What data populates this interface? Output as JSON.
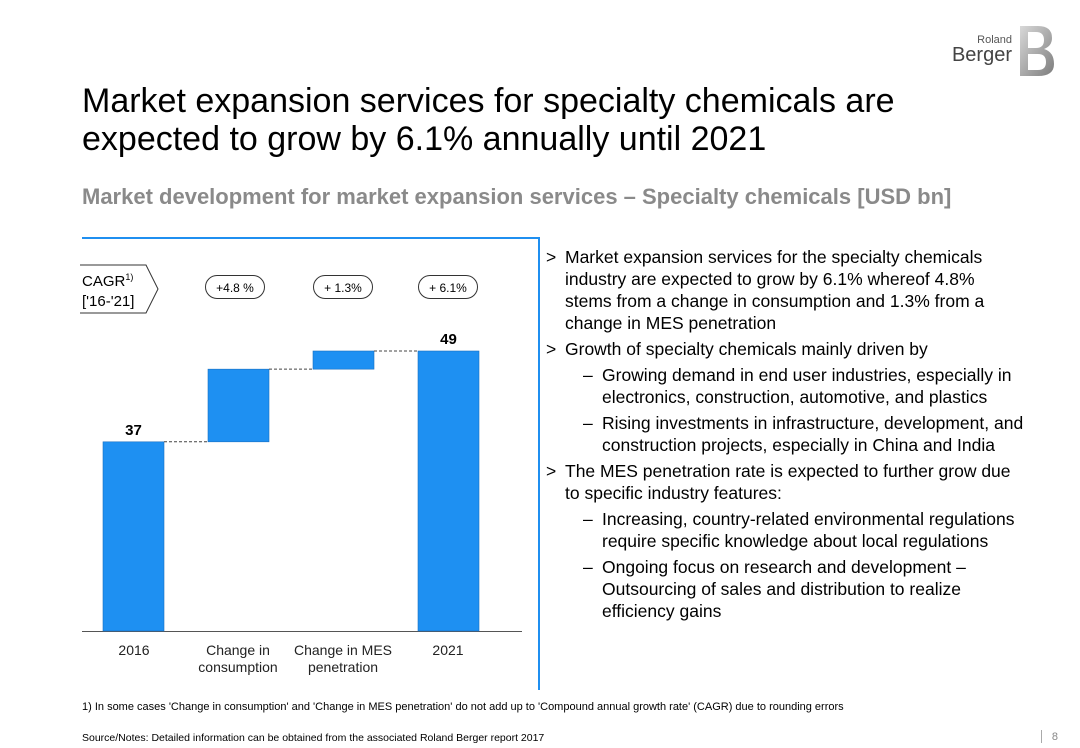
{
  "brand": {
    "line1": "Roland",
    "line2": "Berger"
  },
  "title": "Market expansion services for specialty chemicals are expected to grow by 6.1% annually until 2021",
  "subtitle": "Market development for market expansion services – Specialty chemicals [USD bn]",
  "cagr": {
    "label": "CAGR",
    "sup": "1)",
    "period": "['16-'21]",
    "values": [
      "+4.8 %",
      "+ 1.3%",
      "+ 6.1%"
    ]
  },
  "chart_data": {
    "type": "bar",
    "subtype": "waterfall",
    "title": "Market development for market expansion services – Specialty chemicals [USD bn]",
    "categories": [
      "2016",
      "Change in consumption",
      "Change in MES penetration",
      "2021"
    ],
    "category_lines": [
      [
        "2016"
      ],
      [
        "Change in",
        "consumption"
      ],
      [
        "Change in MES",
        "penetration"
      ],
      [
        "2021"
      ]
    ],
    "bars": [
      {
        "label": "2016",
        "base": 0,
        "value": 37,
        "kind": "total",
        "data_label": "37"
      },
      {
        "label": "Change in consumption",
        "base": 37,
        "value": 9.6,
        "kind": "delta",
        "data_label": ""
      },
      {
        "label": "Change in MES penetration",
        "base": 46.6,
        "value": 2.4,
        "kind": "delta",
        "data_label": ""
      },
      {
        "label": "2021",
        "base": 0,
        "value": 49,
        "kind": "total",
        "data_label": "49"
      }
    ],
    "ylim": [
      0,
      55
    ],
    "unit": "USD bn",
    "bar_color": "#1e90f2"
  },
  "bullets": [
    {
      "marker": ">",
      "text": "Market expansion services for the specialty chemicals industry are expected to grow by 6.1% whereof 4.8% stems from a change in consumption and 1.3% from a change in MES penetration",
      "sub": []
    },
    {
      "marker": ">",
      "text": "Growth of specialty chemicals mainly driven by",
      "sub": [
        {
          "marker": "–",
          "text": "Growing demand in end user industries, especially in electronics, construction, automotive, and plastics"
        },
        {
          "marker": "–",
          "text": "Rising investments in infrastructure, development, and construction projects, especially in China and India"
        }
      ]
    },
    {
      "marker": ">",
      "text": "The MES penetration rate is expected to further grow due to specific industry features:",
      "sub": [
        {
          "marker": "–",
          "text": "Increasing, country-related environmental regulations require specific knowledge about local regulations"
        },
        {
          "marker": "–",
          "text": "Ongoing focus on research and development – Outsourcing of sales and distribution to realize efficiency gains"
        }
      ]
    }
  ],
  "footnote": "1) In some cases 'Change in consumption' and 'Change in MES penetration' do not add up to 'Compound annual growth rate' (CAGR) due to rounding errors",
  "source": "Source/Notes: Detailed information can be obtained from the associated Roland Berger report 2017",
  "page_number": "8"
}
